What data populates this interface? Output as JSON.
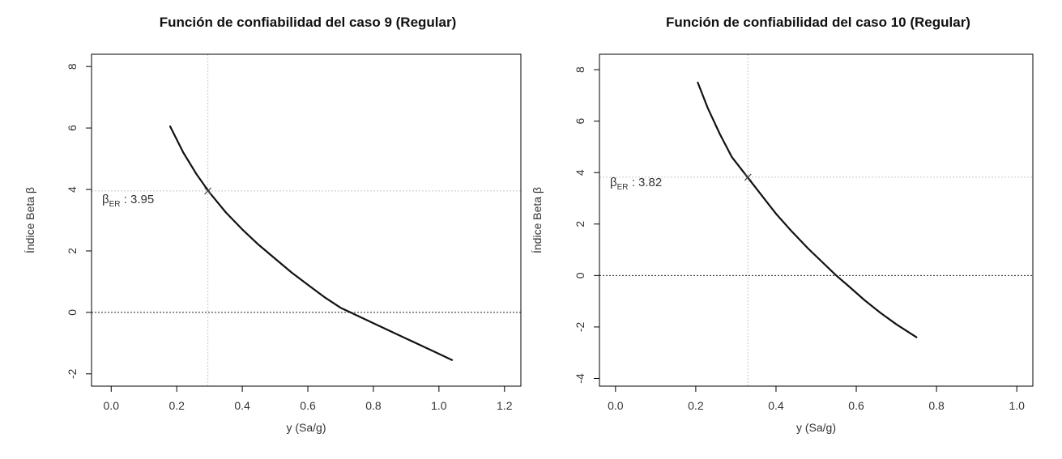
{
  "chart_data": [
    {
      "type": "line",
      "title": "Función de confiabilidad del caso 9 (Regular)",
      "xlabel": "y (Sa/g)",
      "ylabel": "Índice Beta β",
      "xlim": [
        -0.06,
        1.25
      ],
      "ylim": [
        -2.4,
        8.4
      ],
      "xticks": [
        0.0,
        0.2,
        0.4,
        0.6,
        0.8,
        1.0,
        1.2
      ],
      "xtick_labels": [
        "0.0",
        "0.2",
        "0.4",
        "0.6",
        "0.8",
        "1.0",
        "1.2"
      ],
      "yticks": [
        -2,
        0,
        2,
        4,
        6,
        8
      ],
      "ytick_labels": [
        "-2",
        "0",
        "2",
        "4",
        "6",
        "8"
      ],
      "grid": false,
      "series": [
        {
          "x": [
            0.18,
            0.22,
            0.26,
            0.3,
            0.35,
            0.4,
            0.45,
            0.5,
            0.55,
            0.6,
            0.65,
            0.7,
            0.73,
            0.8,
            0.85,
            0.9,
            0.95,
            1.0,
            1.04
          ],
          "y": [
            6.05,
            5.2,
            4.5,
            3.9,
            3.25,
            2.7,
            2.2,
            1.75,
            1.3,
            0.9,
            0.5,
            0.15,
            0.0,
            -0.35,
            -0.6,
            -0.85,
            -1.1,
            -1.35,
            -1.55
          ]
        }
      ],
      "reference_lines": {
        "vertical_x": 0.295,
        "horizontal_y": 3.95,
        "zero_line_y": 0
      },
      "marker": {
        "x": 0.295,
        "y": 3.95
      },
      "annotation": {
        "symbol": "β",
        "subscript": "ER",
        "text": " : 3.95"
      }
    },
    {
      "type": "line",
      "title": "Función de confiabilidad del caso 10 (Regular)",
      "xlabel": "y (Sa/g)",
      "ylabel": "Índice Beta β",
      "xlim": [
        -0.04,
        1.04
      ],
      "ylim": [
        -4.3,
        8.6
      ],
      "xticks": [
        0.0,
        0.2,
        0.4,
        0.6,
        0.8,
        1.0
      ],
      "xtick_labels": [
        "0.0",
        "0.2",
        "0.4",
        "0.6",
        "0.8",
        "1.0"
      ],
      "yticks": [
        -4,
        -2,
        0,
        2,
        4,
        6,
        8
      ],
      "ytick_labels": [
        "-4",
        "-2",
        "0",
        "2",
        "4",
        "6",
        "8"
      ],
      "grid": false,
      "series": [
        {
          "x": [
            0.205,
            0.23,
            0.26,
            0.29,
            0.31,
            0.33,
            0.36,
            0.4,
            0.44,
            0.48,
            0.52,
            0.55,
            0.58,
            0.62,
            0.66,
            0.7,
            0.75
          ],
          "y": [
            7.5,
            6.5,
            5.5,
            4.6,
            4.2,
            3.8,
            3.2,
            2.4,
            1.7,
            1.05,
            0.45,
            0.0,
            -0.4,
            -0.95,
            -1.45,
            -1.9,
            -2.4
          ]
        }
      ],
      "reference_lines": {
        "vertical_x": 0.33,
        "horizontal_y": 3.82,
        "zero_line_y": 0
      },
      "marker": {
        "x": 0.33,
        "y": 3.82
      },
      "annotation": {
        "symbol": "β",
        "subscript": "ER",
        "text": " : 3.82"
      }
    }
  ]
}
